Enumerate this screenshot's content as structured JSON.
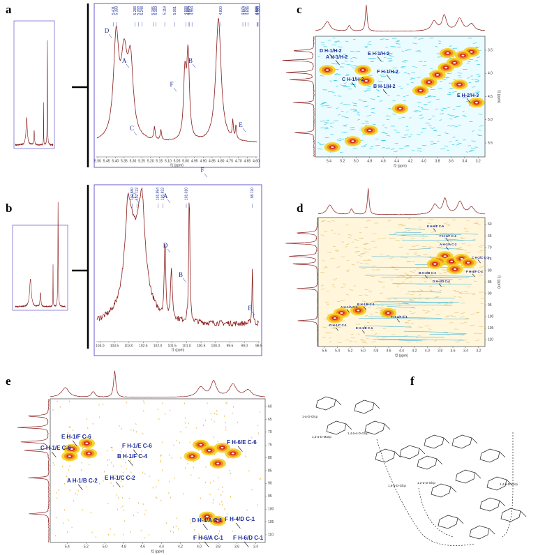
{
  "panels": [
    {
      "letter": "a",
      "peaks": [
        "5.411",
        "5.393",
        "5.288",
        "5.268",
        "5.248",
        "5.185",
        "5.169",
        "5.119",
        "5.061",
        "4.998",
        "4.984",
        "4.979",
        "4.964",
        "4.800",
        "4.675",
        "4.662",
        "4.646",
        "4.595",
        "4.593",
        "4.588"
      ],
      "x_range": [
        5.52,
        4.58
      ],
      "x_ticks": [
        "5.50",
        "5.45",
        "5.40",
        "5.35",
        "5.30",
        "5.25",
        "5.20",
        "5.15",
        "5.10",
        "5.05",
        "5.00",
        "4.95",
        "4.90",
        "4.85",
        "4.80",
        "4.75",
        "4.70",
        "4.65",
        "4.60"
      ],
      "x_label": "f1 (ppm)",
      "annotations": [
        "D",
        "A",
        "C",
        "F",
        "B",
        "E"
      ]
    },
    {
      "letter": "b",
      "peaks": [
        "102.880",
        "102.722",
        "101.994",
        "101.822",
        "101.010",
        "98.720"
      ],
      "x_range": [
        104.2,
        98.4
      ],
      "x_ticks": [
        "104.0",
        "103.5",
        "103.0",
        "102.5",
        "102.0",
        "101.5",
        "101.0",
        "100.5",
        "100.0",
        "99.5",
        "99.0",
        "98.5"
      ],
      "x_label": "f1 (ppm)",
      "annotations": [
        "C",
        "A",
        "D",
        "B",
        "F",
        "E"
      ]
    },
    {
      "letter": "c",
      "x_range": [
        5.6,
        3.1
      ],
      "x_ticks": [
        "5.4",
        "5.2",
        "5.0",
        "4.8",
        "4.6",
        "4.4",
        "4.2",
        "4.0",
        "3.8",
        "3.6",
        "3.4",
        "3.2"
      ],
      "x_label": "f2 (ppm)",
      "y_range": [
        3.2,
        5.8
      ],
      "y_ticks": [
        "3.5",
        "4.0",
        "4.5",
        "5.0",
        "5.5"
      ],
      "y_label": "f1 (ppm)",
      "annotations": [
        "D H-1/H-2",
        "A H-1/H-2",
        "E H-1/H-2",
        "F H-1/H-2",
        "C H-1/H-2",
        "B H-1/H-2",
        "E H-2/H-3"
      ]
    },
    {
      "letter": "d",
      "x_range": [
        5.7,
        3.1
      ],
      "x_ticks": [
        "5.6",
        "5.4",
        "5.2",
        "5.0",
        "4.8",
        "4.6",
        "4.4",
        "4.2",
        "4.0",
        "3.8",
        "3.6",
        "3.4",
        "3.2"
      ],
      "x_label": "f2 (ppm)",
      "y_range": [
        57,
        113
      ],
      "y_ticks": [
        "60",
        "65",
        "70",
        "75",
        "80",
        "85",
        "90",
        "95",
        "100",
        "105",
        "110"
      ],
      "y_label": "f1 (ppm)",
      "annotations": [
        "E H-6/F C-6",
        "F H-1/F C-4",
        "A H-2/A C-2",
        "C H-2/C C-2",
        "B H-3/B C-3",
        "F H-4/F C-4",
        "D H-4/D C-4",
        "B H-1/B C-1",
        "A H-1/A C-1",
        "D H-1/C C-1",
        "E H-1/E C-1",
        "F H-1/F C-1"
      ]
    },
    {
      "letter": "e",
      "x_range": [
        5.58,
        3.3
      ],
      "x_ticks": [
        "5.4",
        "5.2",
        "5.0",
        "4.8",
        "4.6",
        "4.4",
        "4.2",
        "4.0",
        "3.8",
        "3.6",
        "3.4"
      ],
      "x_label": "f2 (ppm)",
      "y_range": [
        57,
        113
      ],
      "y_ticks": [
        "60",
        "65",
        "70",
        "75",
        "80",
        "85",
        "90",
        "95",
        "100",
        "105",
        "110"
      ],
      "annotations": [
        "E H-1/F C-6",
        "C H-1/E C-6",
        "F H-1/E C-6",
        "B H-1/F C-4",
        "E H-1/C C-2",
        "A H-1/B C-2",
        "F H-6/E C-6",
        "D H-4/A C-1",
        "F H-4/D C-1",
        "F H-6/A C-1",
        "F H-6/D C-1"
      ]
    },
    {
      "letter": "f",
      "labels": [
        "1-α-D-Glcp",
        "1,3-α-D-Manp",
        "1,4,6-α-D-Glcp",
        "1,2-α-D-Glcp",
        "1,6-α-D-Glcp",
        "1,4-α-D-Glcp"
      ]
    }
  ]
}
